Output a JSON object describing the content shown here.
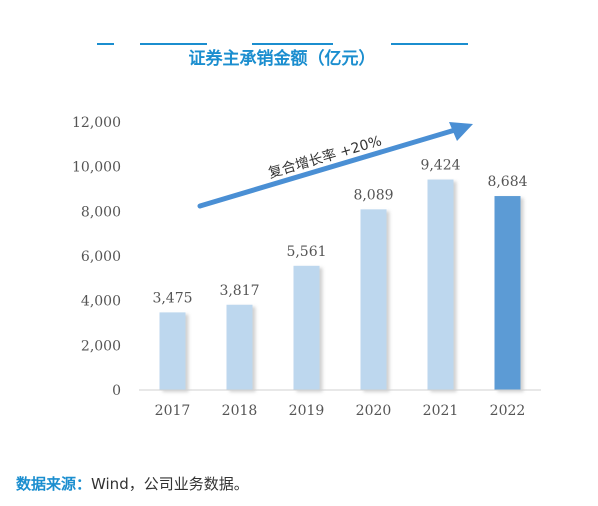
{
  "chart_data": {
    "type": "bar",
    "title": "证券主承销金额（亿元）",
    "categories": [
      "2017",
      "2018",
      "2019",
      "2020",
      "2021",
      "2022"
    ],
    "values": [
      3475,
      3817,
      5561,
      8089,
      9424,
      8684
    ],
    "data_labels": [
      "3,475",
      "3,817",
      "5,561",
      "8,089",
      "9,424",
      "8,684"
    ],
    "ylim": [
      0,
      12000
    ],
    "yticks": [
      0,
      2000,
      4000,
      6000,
      8000,
      10000,
      12000
    ],
    "ytick_labels": [
      "0",
      "2,000",
      "4,000",
      "6,000",
      "8,000",
      "10,000",
      "12,000"
    ],
    "highlight_index": 5,
    "annotation": "复合增长率  +20%",
    "grid": false,
    "colors": {
      "bar": "#bdd7ee",
      "highlight": "#5b9bd5",
      "arrow": "#4a8fd4",
      "title": "#1b8ecf",
      "axis": "#d0d0d0"
    }
  },
  "source": {
    "label": "数据来源：",
    "text": "Wind，公司业务数据。"
  }
}
